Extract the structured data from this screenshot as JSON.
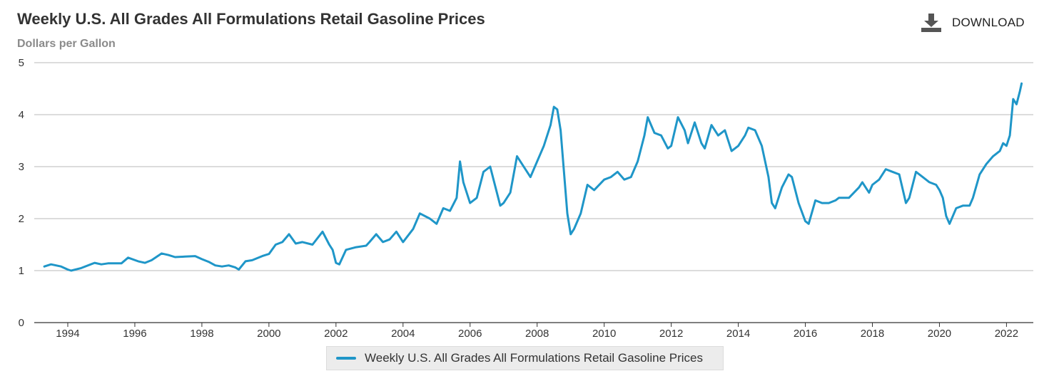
{
  "header": {
    "title": "Weekly U.S. All Grades All Formulations Retail Gasoline Prices",
    "subtitle": "Dollars per Gallon"
  },
  "toolbar": {
    "download_label": "DOWNLOAD",
    "download_icon": "download-icon"
  },
  "colors": {
    "series": "#1f96c8",
    "grid": "#c8c8c8",
    "axis": "#333333",
    "legend_bg": "#ececec"
  },
  "chart_data": {
    "type": "line",
    "title": "Weekly U.S. All Grades All Formulations Retail Gasoline Prices",
    "ylabel": "Dollars per Gallon",
    "xlabel": "",
    "xlim": [
      1993.0,
      2022.8
    ],
    "ylim": [
      0,
      5
    ],
    "yticks": [
      "0",
      "1",
      "2",
      "3",
      "4",
      "5"
    ],
    "xticks": [
      "1994",
      "1996",
      "1998",
      "2000",
      "2002",
      "2004",
      "2006",
      "2008",
      "2010",
      "2012",
      "2014",
      "2016",
      "2018",
      "2020",
      "2022"
    ],
    "grid": true,
    "legend": "bottom-center",
    "series": [
      {
        "name": "Weekly U.S. All Grades All Formulations Retail Gasoline Prices",
        "points": [
          [
            1993.3,
            1.08
          ],
          [
            1993.5,
            1.12
          ],
          [
            1993.8,
            1.08
          ],
          [
            1994.0,
            1.02
          ],
          [
            1994.1,
            1.0
          ],
          [
            1994.4,
            1.05
          ],
          [
            1994.8,
            1.15
          ],
          [
            1995.0,
            1.12
          ],
          [
            1995.2,
            1.14
          ],
          [
            1995.6,
            1.14
          ],
          [
            1995.8,
            1.25
          ],
          [
            1996.1,
            1.18
          ],
          [
            1996.3,
            1.15
          ],
          [
            1996.5,
            1.2
          ],
          [
            1996.8,
            1.33
          ],
          [
            1997.0,
            1.3
          ],
          [
            1997.2,
            1.26
          ],
          [
            1997.5,
            1.27
          ],
          [
            1997.8,
            1.28
          ],
          [
            1998.0,
            1.22
          ],
          [
            1998.2,
            1.17
          ],
          [
            1998.4,
            1.1
          ],
          [
            1998.6,
            1.08
          ],
          [
            1998.8,
            1.1
          ],
          [
            1999.0,
            1.06
          ],
          [
            1999.1,
            1.02
          ],
          [
            1999.3,
            1.18
          ],
          [
            1999.5,
            1.2
          ],
          [
            1999.8,
            1.28
          ],
          [
            2000.0,
            1.32
          ],
          [
            2000.2,
            1.5
          ],
          [
            2000.4,
            1.55
          ],
          [
            2000.6,
            1.7
          ],
          [
            2000.8,
            1.52
          ],
          [
            2001.0,
            1.55
          ],
          [
            2001.3,
            1.5
          ],
          [
            2001.6,
            1.75
          ],
          [
            2001.8,
            1.5
          ],
          [
            2001.9,
            1.4
          ],
          [
            2002.0,
            1.15
          ],
          [
            2002.1,
            1.12
          ],
          [
            2002.3,
            1.4
          ],
          [
            2002.6,
            1.45
          ],
          [
            2002.9,
            1.48
          ],
          [
            2003.0,
            1.55
          ],
          [
            2003.2,
            1.7
          ],
          [
            2003.4,
            1.55
          ],
          [
            2003.6,
            1.6
          ],
          [
            2003.8,
            1.75
          ],
          [
            2004.0,
            1.55
          ],
          [
            2004.3,
            1.8
          ],
          [
            2004.5,
            2.1
          ],
          [
            2004.8,
            2.0
          ],
          [
            2005.0,
            1.9
          ],
          [
            2005.2,
            2.2
          ],
          [
            2005.4,
            2.15
          ],
          [
            2005.6,
            2.4
          ],
          [
            2005.7,
            3.1
          ],
          [
            2005.8,
            2.7
          ],
          [
            2006.0,
            2.3
          ],
          [
            2006.2,
            2.4
          ],
          [
            2006.4,
            2.9
          ],
          [
            2006.6,
            3.0
          ],
          [
            2006.8,
            2.5
          ],
          [
            2006.9,
            2.25
          ],
          [
            2007.0,
            2.3
          ],
          [
            2007.2,
            2.5
          ],
          [
            2007.4,
            3.2
          ],
          [
            2007.6,
            3.0
          ],
          [
            2007.8,
            2.8
          ],
          [
            2008.0,
            3.1
          ],
          [
            2008.2,
            3.4
          ],
          [
            2008.4,
            3.8
          ],
          [
            2008.5,
            4.15
          ],
          [
            2008.6,
            4.1
          ],
          [
            2008.7,
            3.7
          ],
          [
            2008.8,
            2.9
          ],
          [
            2008.9,
            2.1
          ],
          [
            2009.0,
            1.7
          ],
          [
            2009.1,
            1.8
          ],
          [
            2009.3,
            2.1
          ],
          [
            2009.5,
            2.65
          ],
          [
            2009.7,
            2.55
          ],
          [
            2010.0,
            2.75
          ],
          [
            2010.2,
            2.8
          ],
          [
            2010.4,
            2.9
          ],
          [
            2010.6,
            2.75
          ],
          [
            2010.8,
            2.8
          ],
          [
            2011.0,
            3.1
          ],
          [
            2011.2,
            3.6
          ],
          [
            2011.3,
            3.95
          ],
          [
            2011.5,
            3.65
          ],
          [
            2011.7,
            3.6
          ],
          [
            2011.9,
            3.35
          ],
          [
            2012.0,
            3.4
          ],
          [
            2012.2,
            3.95
          ],
          [
            2012.4,
            3.7
          ],
          [
            2012.5,
            3.45
          ],
          [
            2012.7,
            3.85
          ],
          [
            2012.9,
            3.45
          ],
          [
            2013.0,
            3.35
          ],
          [
            2013.2,
            3.8
          ],
          [
            2013.4,
            3.6
          ],
          [
            2013.6,
            3.7
          ],
          [
            2013.8,
            3.3
          ],
          [
            2014.0,
            3.4
          ],
          [
            2014.2,
            3.6
          ],
          [
            2014.3,
            3.75
          ],
          [
            2014.5,
            3.7
          ],
          [
            2014.7,
            3.4
          ],
          [
            2014.9,
            2.8
          ],
          [
            2015.0,
            2.3
          ],
          [
            2015.1,
            2.2
          ],
          [
            2015.3,
            2.6
          ],
          [
            2015.5,
            2.85
          ],
          [
            2015.6,
            2.8
          ],
          [
            2015.8,
            2.3
          ],
          [
            2016.0,
            1.95
          ],
          [
            2016.1,
            1.9
          ],
          [
            2016.3,
            2.35
          ],
          [
            2016.5,
            2.3
          ],
          [
            2016.7,
            2.3
          ],
          [
            2016.9,
            2.35
          ],
          [
            2017.0,
            2.4
          ],
          [
            2017.3,
            2.4
          ],
          [
            2017.6,
            2.6
          ],
          [
            2017.7,
            2.7
          ],
          [
            2017.9,
            2.5
          ],
          [
            2018.0,
            2.65
          ],
          [
            2018.2,
            2.75
          ],
          [
            2018.4,
            2.95
          ],
          [
            2018.6,
            2.9
          ],
          [
            2018.8,
            2.85
          ],
          [
            2019.0,
            2.3
          ],
          [
            2019.1,
            2.4
          ],
          [
            2019.3,
            2.9
          ],
          [
            2019.5,
            2.8
          ],
          [
            2019.7,
            2.7
          ],
          [
            2019.9,
            2.65
          ],
          [
            2020.0,
            2.55
          ],
          [
            2020.1,
            2.4
          ],
          [
            2020.2,
            2.05
          ],
          [
            2020.3,
            1.9
          ],
          [
            2020.5,
            2.2
          ],
          [
            2020.7,
            2.25
          ],
          [
            2020.9,
            2.25
          ],
          [
            2021.0,
            2.4
          ],
          [
            2021.2,
            2.85
          ],
          [
            2021.4,
            3.05
          ],
          [
            2021.6,
            3.2
          ],
          [
            2021.8,
            3.3
          ],
          [
            2021.9,
            3.45
          ],
          [
            2022.0,
            3.4
          ],
          [
            2022.1,
            3.6
          ],
          [
            2022.2,
            4.3
          ],
          [
            2022.3,
            4.2
          ],
          [
            2022.4,
            4.45
          ],
          [
            2022.45,
            4.6
          ]
        ]
      }
    ]
  }
}
